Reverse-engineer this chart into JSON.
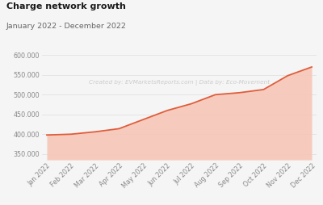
{
  "title": "Charge network growth",
  "subtitle": "January 2022 - December 2022",
  "watermark": "Created by: EVMarketsReports.com | Data by: Eco-Movement",
  "months": [
    "Jan 2022",
    "Feb 2022",
    "Mar 2022",
    "Apr 2022",
    "May 2022",
    "Jun 2022",
    "Jul 2022",
    "Aug 2022",
    "Sep 2022",
    "Oct 2022",
    "Nov 2022",
    "Dec 2022"
  ],
  "values": [
    398000,
    400000,
    406000,
    414000,
    437000,
    460000,
    477000,
    500000,
    505000,
    513000,
    548000,
    570000
  ],
  "line_color": "#e05c3a",
  "fill_color": "#f7c4b4",
  "fill_alpha": 0.85,
  "background_color": "#f5f5f5",
  "grid_color": "#dddddd",
  "ylim": [
    335000,
    615000
  ],
  "yticks": [
    350000,
    400000,
    450000,
    500000,
    550000,
    600000
  ],
  "ytick_labels": [
    "350.000",
    "400.000",
    "450.000",
    "500.000",
    "550.000",
    "600.000"
  ],
  "title_fontsize": 8,
  "subtitle_fontsize": 6.8,
  "tick_fontsize": 5.8,
  "watermark_fontsize": 5.2,
  "title_color": "#1a1a1a",
  "subtitle_color": "#666666",
  "tick_color": "#888888",
  "watermark_color": "#cccccc"
}
